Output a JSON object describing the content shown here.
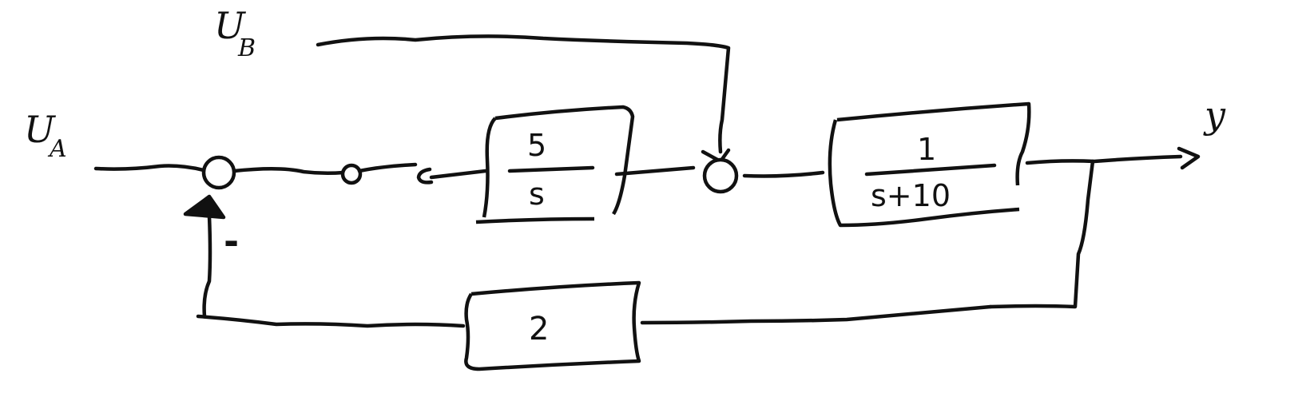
{
  "diagram": {
    "inputs": {
      "u_a": "U",
      "u_a_sub": "A",
      "u_b": "U",
      "u_b_sub": "B"
    },
    "output": "y",
    "summing_junction_sign": "-",
    "blocks": {
      "integrator": {
        "numerator": "5",
        "denominator": "s"
      },
      "plant": {
        "numerator": "1",
        "denominator": "s+10"
      },
      "feedback": {
        "gain": "2"
      }
    },
    "colors": {
      "ink": "#111111",
      "background": "#ffffff"
    }
  }
}
